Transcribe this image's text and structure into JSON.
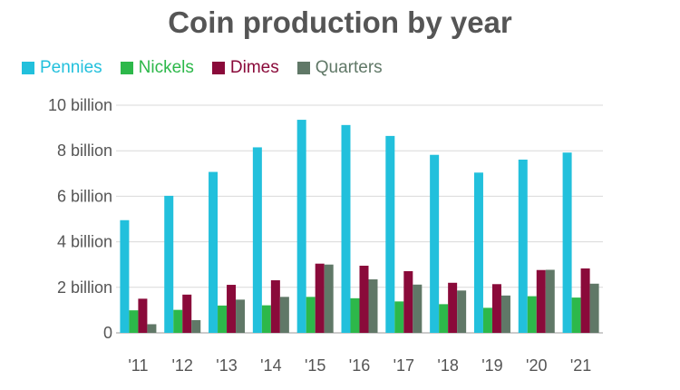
{
  "chart_data": {
    "type": "bar",
    "title": "Coin production by year",
    "xlabel": "",
    "ylabel": "",
    "categories": [
      "'11",
      "'12",
      "'13",
      "'14",
      "'15",
      "'16",
      "'17",
      "'18",
      "'19",
      "'20",
      "'21"
    ],
    "series": [
      {
        "name": "Pennies",
        "color": "#22c0dc",
        "values": [
          4.95,
          6.02,
          7.07,
          8.15,
          9.36,
          9.13,
          8.65,
          7.82,
          7.04,
          7.61,
          7.92
        ]
      },
      {
        "name": "Nickels",
        "color": "#2db84a",
        "values": [
          0.99,
          1.01,
          1.2,
          1.21,
          1.58,
          1.52,
          1.38,
          1.26,
          1.1,
          1.61,
          1.55
        ]
      },
      {
        "name": "Dimes",
        "color": "#8a0a3a",
        "values": [
          1.5,
          1.68,
          2.11,
          2.31,
          3.04,
          2.95,
          2.71,
          2.2,
          2.14,
          2.76,
          2.83
        ]
      },
      {
        "name": "Quarters",
        "color": "#607867",
        "values": [
          0.38,
          0.56,
          1.46,
          1.58,
          3.0,
          2.35,
          2.12,
          1.86,
          1.64,
          2.77,
          2.16
        ]
      }
    ],
    "y_ticks": [
      {
        "value": 0,
        "label": "0"
      },
      {
        "value": 2,
        "label": "2 billion"
      },
      {
        "value": 4,
        "label": "4 billion"
      },
      {
        "value": 6,
        "label": "6 billion"
      },
      {
        "value": 8,
        "label": "8 billion"
      },
      {
        "value": 10,
        "label": "10 billion"
      }
    ],
    "ylim": [
      0,
      10
    ],
    "grid": true,
    "legend_position": "top-left"
  }
}
